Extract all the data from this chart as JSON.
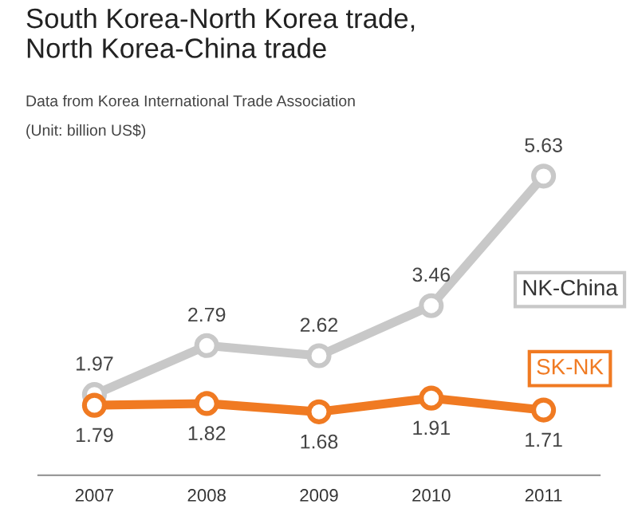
{
  "chart_data": {
    "type": "line",
    "title": "South Korea-North Korea trade,\nNorth Korea-China trade",
    "annotations": [
      "Data from Korea International Trade Association",
      "(Unit: billion US$)"
    ],
    "categories": [
      "2007",
      "2008",
      "2009",
      "2010",
      "2011"
    ],
    "series": [
      {
        "name": "NK-China",
        "color": "#c8c8c8",
        "values": [
          1.97,
          2.79,
          2.62,
          3.46,
          5.63
        ]
      },
      {
        "name": "SK-NK",
        "color": "#f07a22",
        "values": [
          1.79,
          1.82,
          1.68,
          1.91,
          1.71
        ]
      }
    ],
    "data_labels": true,
    "marker": "circle",
    "line_style": "solid",
    "grid": false,
    "legend": false
  }
}
